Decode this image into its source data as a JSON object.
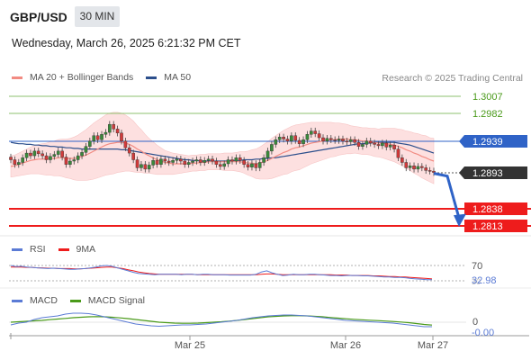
{
  "header": {
    "symbol": "GBP/USD",
    "timeframe": "30 MIN"
  },
  "datetime": "Wednesday, March 26, 2025 6:21:32 PM CET",
  "credit": "Research © 2025 Trading Central",
  "colors": {
    "ma20": "#f28b82",
    "ma50": "#2c4f8c",
    "bands": "#fde0e0",
    "resistance": "#8dc26f",
    "support": "#ee1c1c",
    "pivot": "#2f63c7",
    "current": "#333333",
    "rsi": "#5b7bd5",
    "rsi_ma": "#ee1c1c",
    "macd": "#5b7bd5",
    "macd_signal": "#4a9a1a",
    "candle_up": "#3a8a3a",
    "candle_down": "#d23a3a"
  },
  "main_legend": [
    {
      "label": "MA 20 + Bollinger Bands",
      "color": "#f28b82"
    },
    {
      "label": "MA 50",
      "color": "#2c4f8c"
    }
  ],
  "rsi_legend": [
    {
      "label": "RSI",
      "color": "#5b7bd5"
    },
    {
      "label": "9MA",
      "color": "#ee1c1c"
    }
  ],
  "macd_legend": [
    {
      "label": "MACD",
      "color": "#5b7bd5"
    },
    {
      "label": "MACD Signal",
      "color": "#4a9a1a"
    }
  ],
  "chart_data": [
    {
      "type": "candlestick",
      "ylim": [
        1.28,
        1.3015
      ],
      "x_ticks": [
        "Mar 25",
        "Mar 26",
        "Mar 27"
      ],
      "levels": [
        {
          "value": 1.3007,
          "label": "1.3007",
          "kind": "resistance"
        },
        {
          "value": 1.2982,
          "label": "1.2982",
          "kind": "resistance"
        },
        {
          "value": 1.2939,
          "label": "1.2939",
          "kind": "pivot"
        },
        {
          "value": 1.2893,
          "label": "1.2893",
          "kind": "current"
        },
        {
          "value": 1.2838,
          "label": "1.2838",
          "kind": "support"
        },
        {
          "value": 1.2813,
          "label": "1.2813",
          "kind": "support"
        }
      ],
      "close": [
        1.2912,
        1.2905,
        1.2908,
        1.2915,
        1.2922,
        1.2918,
        1.2925,
        1.2921,
        1.2918,
        1.2912,
        1.2917,
        1.292,
        1.2925,
        1.2916,
        1.2905,
        1.291,
        1.2912,
        1.2918,
        1.2923,
        1.2932,
        1.294,
        1.2948,
        1.2942,
        1.295,
        1.2953,
        1.2965,
        1.2958,
        1.2952,
        1.294,
        1.293,
        1.2922,
        1.2912,
        1.29,
        1.2905,
        1.2898,
        1.2904,
        1.2911,
        1.2905,
        1.2913,
        1.291,
        1.2908,
        1.2911,
        1.2913,
        1.291,
        1.2905,
        1.2908,
        1.291,
        1.2912,
        1.2908,
        1.2911,
        1.2913,
        1.291,
        1.2905,
        1.2902,
        1.2906,
        1.2912,
        1.291,
        1.2915,
        1.2911,
        1.2905,
        1.2901,
        1.2906,
        1.29,
        1.2908,
        1.2915,
        1.2925,
        1.2935,
        1.2942,
        1.2946,
        1.2943,
        1.294,
        1.2948,
        1.2941,
        1.2936,
        1.2942,
        1.295,
        1.2955,
        1.2951,
        1.2945,
        1.294,
        1.2944,
        1.2942,
        1.2941,
        1.2943,
        1.294,
        1.2939,
        1.2942,
        1.2938,
        1.2932,
        1.2935,
        1.294,
        1.2937,
        1.2935,
        1.2933,
        1.2937,
        1.2931,
        1.2934,
        1.2928,
        1.2915,
        1.2908,
        1.29,
        1.2903,
        1.2898,
        1.2902,
        1.29,
        1.2896,
        1.2895,
        1.2893
      ],
      "ma20": [
        1.2902,
        1.2903,
        1.2905,
        1.2907,
        1.2909,
        1.2911,
        1.2912,
        1.2913,
        1.2913,
        1.2913,
        1.2914,
        1.2914,
        1.2915,
        1.2915,
        1.2914,
        1.2914,
        1.2914,
        1.2915,
        1.2917,
        1.2919,
        1.2922,
        1.2925,
        1.2928,
        1.2931,
        1.2934,
        1.2936,
        1.2937,
        1.2938,
        1.2938,
        1.2937,
        1.2935,
        1.2932,
        1.2928,
        1.2925,
        1.2921,
        1.2918,
        1.2915,
        1.2912,
        1.291,
        1.2908,
        1.2907,
        1.2906,
        1.2906,
        1.2906,
        1.2906,
        1.2906,
        1.2907,
        1.2907,
        1.2908,
        1.2908,
        1.2909,
        1.2909,
        1.2909,
        1.2909,
        1.2909,
        1.2909,
        1.2909,
        1.2909,
        1.2909,
        1.2908,
        1.2907,
        1.2907,
        1.2906,
        1.2907,
        1.2909,
        1.2911,
        1.2914,
        1.2917,
        1.292,
        1.2923,
        1.2925,
        1.2928,
        1.293,
        1.2931,
        1.2933,
        1.2935,
        1.2937,
        1.2938,
        1.2939,
        1.294,
        1.2941,
        1.2942,
        1.2942,
        1.2943,
        1.2943,
        1.2943,
        1.2942,
        1.2942,
        1.2941,
        1.294,
        1.294,
        1.2939,
        1.2938,
        1.2937,
        1.2937,
        1.2936,
        1.2935,
        1.2934,
        1.2932,
        1.293,
        1.2927,
        1.2925,
        1.2922,
        1.292,
        1.2917,
        1.2915,
        1.2912,
        1.291
      ],
      "ma50": [
        1.2938,
        1.2937,
        1.2936,
        1.2936,
        1.2935,
        1.2935,
        1.2934,
        1.2934,
        1.2933,
        1.2933,
        1.2932,
        1.2932,
        1.2931,
        1.2931,
        1.293,
        1.293,
        1.2929,
        1.2929,
        1.2928,
        1.2928,
        1.2928,
        1.2928,
        1.2928,
        1.2928,
        1.2928,
        1.2928,
        1.2928,
        1.2928,
        1.2927,
        1.2927,
        1.2926,
        1.2925,
        1.2924,
        1.2923,
        1.2922,
        1.2921,
        1.292,
        1.2919,
        1.2918,
        1.2917,
        1.2916,
        1.2915,
        1.2914,
        1.2913,
        1.2912,
        1.2912,
        1.2911,
        1.2911,
        1.291,
        1.291,
        1.291,
        1.291,
        1.291,
        1.291,
        1.291,
        1.291,
        1.2911,
        1.2911,
        1.2911,
        1.2912,
        1.2912,
        1.2912,
        1.2913,
        1.2913,
        1.2914,
        1.2914,
        1.2915,
        1.2915,
        1.2916,
        1.2917,
        1.2918,
        1.2919,
        1.292,
        1.2921,
        1.2922,
        1.2923,
        1.2924,
        1.2925,
        1.2926,
        1.2927,
        1.2928,
        1.2929,
        1.293,
        1.2931,
        1.2932,
        1.2933,
        1.2934,
        1.2935,
        1.2936,
        1.2936,
        1.2937,
        1.2937,
        1.2938,
        1.2938,
        1.2938,
        1.2938,
        1.2938,
        1.2938,
        1.2937,
        1.2936,
        1.2935,
        1.2934,
        1.2932,
        1.293,
        1.2928,
        1.2926,
        1.2924,
        1.2922
      ],
      "band_width": [
        0.0016,
        0.0016,
        0.0017,
        0.0018,
        0.0019,
        0.002,
        0.0021,
        0.0022,
        0.0023,
        0.0024,
        0.0025,
        0.0026,
        0.0027,
        0.0028,
        0.0029,
        0.003,
        0.0032,
        0.0034,
        0.0036,
        0.0038,
        0.004,
        0.0042,
        0.0043,
        0.0044,
        0.0045,
        0.0046,
        0.0046,
        0.0045,
        0.0044,
        0.0042,
        0.004,
        0.0038,
        0.0035,
        0.0032,
        0.0029,
        0.0026,
        0.0024,
        0.0022,
        0.002,
        0.0018,
        0.0017,
        0.0016,
        0.0015,
        0.0014,
        0.0013,
        0.0012,
        0.0012,
        0.0012,
        0.0012,
        0.0012,
        0.0012,
        0.0012,
        0.0012,
        0.0012,
        0.0013,
        0.0013,
        0.0013,
        0.0014,
        0.0015,
        0.0016,
        0.0018,
        0.002,
        0.0022,
        0.0024,
        0.0026,
        0.0028,
        0.003,
        0.0031,
        0.0032,
        0.0033,
        0.0034,
        0.0034,
        0.0034,
        0.0034,
        0.0033,
        0.0032,
        0.0031,
        0.003,
        0.0029,
        0.0028,
        0.0027,
        0.0026,
        0.0025,
        0.0024,
        0.0023,
        0.0022,
        0.0021,
        0.002,
        0.002,
        0.002,
        0.002,
        0.002,
        0.0021,
        0.0021,
        0.0022,
        0.0023,
        0.0024,
        0.0025,
        0.0026,
        0.0027,
        0.0028,
        0.0029,
        0.003,
        0.0031,
        0.0032,
        0.0033,
        0.0033,
        0.0034
      ]
    },
    {
      "type": "line",
      "name": "RSI",
      "ylim": [
        20,
        80
      ],
      "y_ticks": [
        70,
        30
      ],
      "last_value": "32.98",
      "rsi": [
        70,
        67,
        68,
        66,
        65,
        64,
        63,
        62,
        63,
        62,
        61,
        60,
        60,
        61,
        62,
        64,
        66,
        69,
        70,
        68,
        64,
        60,
        56,
        52,
        49,
        48,
        47,
        46,
        47,
        47,
        47,
        47,
        46,
        47,
        47,
        46,
        47,
        47,
        46,
        46,
        46,
        45,
        45,
        45,
        45,
        45,
        47,
        53,
        56,
        51,
        47,
        44,
        45,
        47,
        46,
        46,
        47,
        47,
        46,
        45,
        44,
        44,
        43,
        44,
        44,
        44,
        43,
        43,
        42,
        41,
        40,
        40,
        39,
        39,
        38,
        36,
        35,
        34,
        33,
        33
      ],
      "ma9": [
        66,
        66,
        66,
        65,
        65,
        64,
        64,
        63,
        63,
        62,
        62,
        62,
        61,
        61,
        62,
        63,
        64,
        65,
        66,
        66,
        64,
        62,
        59,
        56,
        53,
        51,
        49,
        48,
        47,
        47,
        47,
        47,
        47,
        47,
        47,
        46,
        46,
        46,
        46,
        46,
        46,
        46,
        46,
        46,
        46,
        46,
        46,
        47,
        48,
        48,
        47,
        46,
        46,
        46,
        46,
        46,
        46,
        46,
        46,
        46,
        46,
        45,
        45,
        45,
        44,
        44,
        44,
        44,
        43,
        43,
        42,
        41,
        41,
        40,
        40,
        39,
        38,
        37,
        36,
        35
      ]
    },
    {
      "type": "line",
      "name": "MACD",
      "y_ticks": [
        "0"
      ],
      "last_value": "-0.00",
      "macd": [
        -0.3,
        -0.1,
        0.0,
        0.3,
        0.5,
        0.6,
        0.7,
        0.9,
        1.0,
        1.0,
        0.95,
        0.8,
        0.6,
        0.4,
        0.2,
        0.0,
        -0.2,
        -0.3,
        -0.4,
        -0.45,
        -0.4,
        -0.35,
        -0.3,
        -0.3,
        -0.25,
        -0.2,
        -0.1,
        0.0,
        0.1,
        0.2,
        0.35,
        0.5,
        0.6,
        0.7,
        0.75,
        0.8,
        0.8,
        0.75,
        0.7,
        0.6,
        0.5,
        0.4,
        0.3,
        0.2,
        0.15,
        0.1,
        0.05,
        0.0,
        -0.05,
        -0.1,
        -0.2,
        -0.3,
        -0.4,
        -0.5,
        -0.5
      ],
      "signal": [
        0.0,
        0.05,
        0.1,
        0.15,
        0.2,
        0.28,
        0.35,
        0.42,
        0.5,
        0.55,
        0.6,
        0.62,
        0.6,
        0.55,
        0.48,
        0.4,
        0.3,
        0.2,
        0.1,
        0.0,
        -0.05,
        -0.1,
        -0.12,
        -0.12,
        -0.1,
        -0.05,
        0.0,
        0.05,
        0.12,
        0.2,
        0.3,
        0.4,
        0.5,
        0.6,
        0.65,
        0.7,
        0.72,
        0.72,
        0.7,
        0.65,
        0.6,
        0.52,
        0.45,
        0.38,
        0.32,
        0.27,
        0.22,
        0.18,
        0.13,
        0.08,
        0.02,
        -0.05,
        -0.15,
        -0.25,
        -0.32
      ]
    }
  ]
}
